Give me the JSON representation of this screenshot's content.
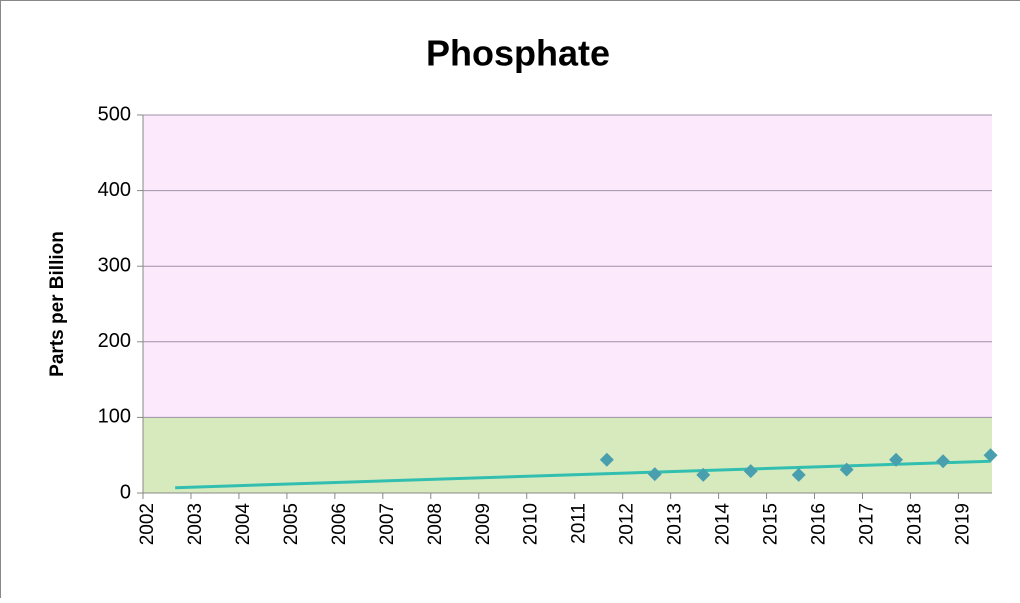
{
  "chart_data": {
    "type": "scatter",
    "title": "Phosphate",
    "y_label": "Parts per Billion",
    "x": [
      2011.67,
      2012.67,
      2013.68,
      2014.67,
      2015.67,
      2016.67,
      2017.7,
      2018.68,
      2019.67
    ],
    "values": [
      44,
      25,
      24,
      29,
      24,
      31,
      44,
      42,
      50
    ],
    "color": "#4a9fae",
    "trendline": {
      "x": [
        2002.67,
        2019.67
      ],
      "values": [
        7,
        42
      ],
      "color": "#33bfb0"
    },
    "bands": [
      {
        "from": 0,
        "to": 100,
        "color": "#d7eabd"
      },
      {
        "from": 100,
        "to": 500,
        "color": "#fce9fc"
      }
    ],
    "xlim": [
      2002,
      2019.7
    ],
    "xticks": [
      2002,
      2003,
      2004,
      2005,
      2006,
      2007,
      2008,
      2009,
      2010,
      2011,
      2012,
      2013,
      2014,
      2015,
      2016,
      2017,
      2018,
      2019
    ],
    "ylim": [
      0,
      500
    ],
    "yticks": [
      0,
      100,
      200,
      300,
      400,
      500
    ],
    "grid": true
  }
}
